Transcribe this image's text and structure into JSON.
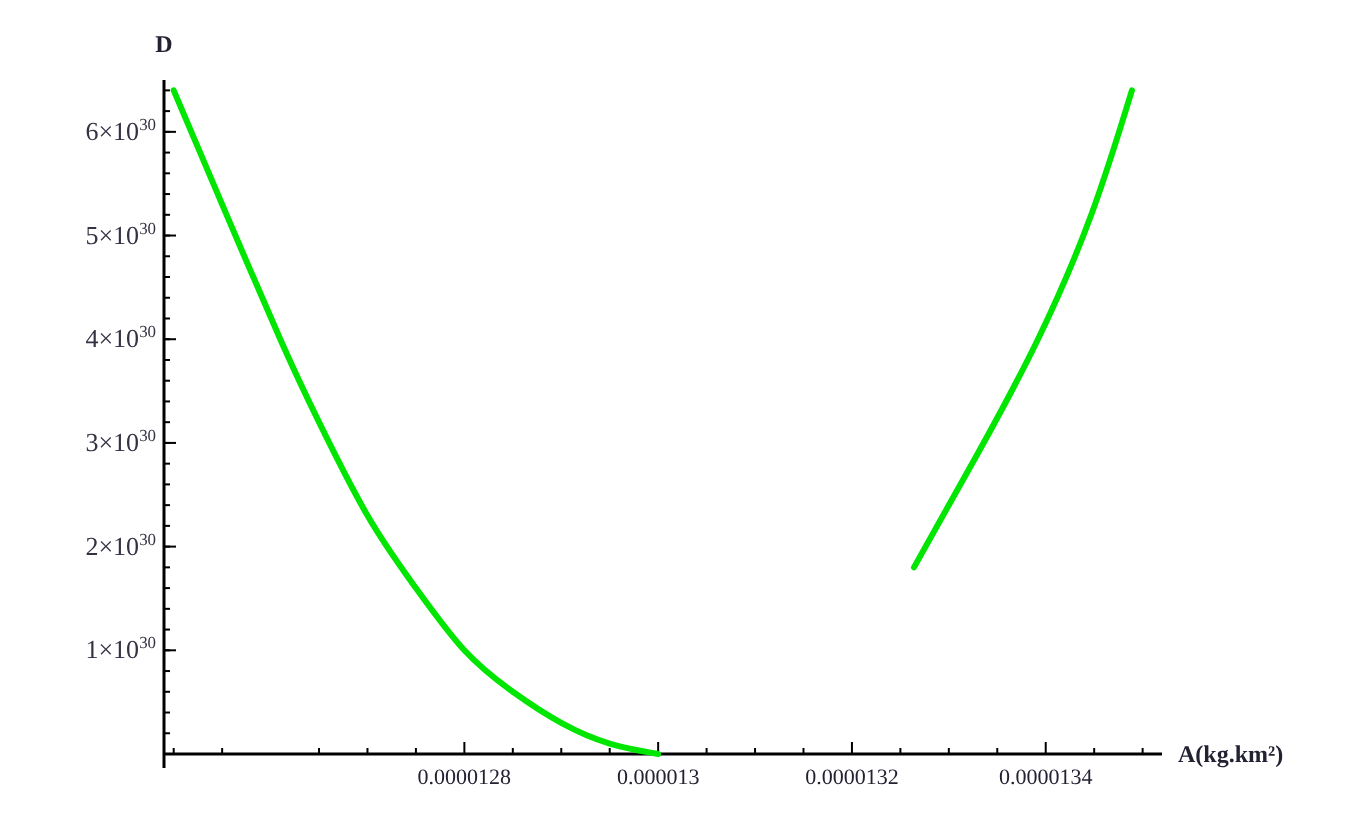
{
  "chart_data": {
    "type": "line",
    "xlabel": "A(kg.km²)",
    "ylabel": "D",
    "xlim": [
      1.249e-05,
      1.352e-05
    ],
    "ylim": [
      0,
      6.5e+30
    ],
    "xticks": [
      {
        "value": 1.25e-05,
        "label": null
      },
      {
        "value": 1.255e-05,
        "label": null
      },
      {
        "value": 1.265e-05,
        "label": null
      },
      {
        "value": 1.27e-05,
        "label": null
      },
      {
        "value": 1.275e-05,
        "label": null
      },
      {
        "value": 1.28e-05,
        "label": "0.0000128"
      },
      {
        "value": 1.285e-05,
        "label": null
      },
      {
        "value": 1.29e-05,
        "label": null
      },
      {
        "value": 1.295e-05,
        "label": null
      },
      {
        "value": 1.3e-05,
        "label": "0.000013"
      },
      {
        "value": 1.305e-05,
        "label": null
      },
      {
        "value": 1.31e-05,
        "label": null
      },
      {
        "value": 1.315e-05,
        "label": null
      },
      {
        "value": 1.32e-05,
        "label": "0.0000132"
      },
      {
        "value": 1.325e-05,
        "label": null
      },
      {
        "value": 1.33e-05,
        "label": null
      },
      {
        "value": 1.335e-05,
        "label": null
      },
      {
        "value": 1.34e-05,
        "label": "0.0000134"
      },
      {
        "value": 1.345e-05,
        "label": null
      },
      {
        "value": 1.35e-05,
        "label": null
      }
    ],
    "yticks": [
      {
        "value": 1e+30,
        "label": "1×10$^{30}$"
      },
      {
        "value": 2e+30,
        "label": "2×10$^{30}$"
      },
      {
        "value": 3e+30,
        "label": "3×10$^{30}$"
      },
      {
        "value": 4e+30,
        "label": "4×10$^{30}$"
      },
      {
        "value": 5e+30,
        "label": "5×10$^{30}$"
      },
      {
        "value": 6e+30,
        "label": "6×10$^{30}$"
      }
    ],
    "grid": false,
    "marker": "none",
    "line_style": "solid",
    "series": [
      {
        "color": "#00e600",
        "x": [
          1.25e-05,
          1.255e-05,
          1.261e-05,
          1.265e-05,
          1.27e-05,
          1.275e-05,
          1.28e-05,
          1.285e-05,
          1.29e-05,
          1.295e-05,
          1.3e-05
        ],
        "values": [
          6.4e+30,
          5.3e+30,
          4e+30,
          3.2e+30,
          2.3e+30,
          1.6e+30,
          1e+30,
          6e+29,
          3e+29,
          1e+29,
          0
        ]
      },
      {
        "color": "#00e600",
        "x": [
          1.3264e-05,
          1.333e-05,
          1.3392e-05,
          1.3447e-05,
          1.3489e-05
        ],
        "values": [
          1.8e+30,
          2.9e+30,
          4e+30,
          5.2e+30,
          6.4e+30
        ]
      }
    ]
  }
}
